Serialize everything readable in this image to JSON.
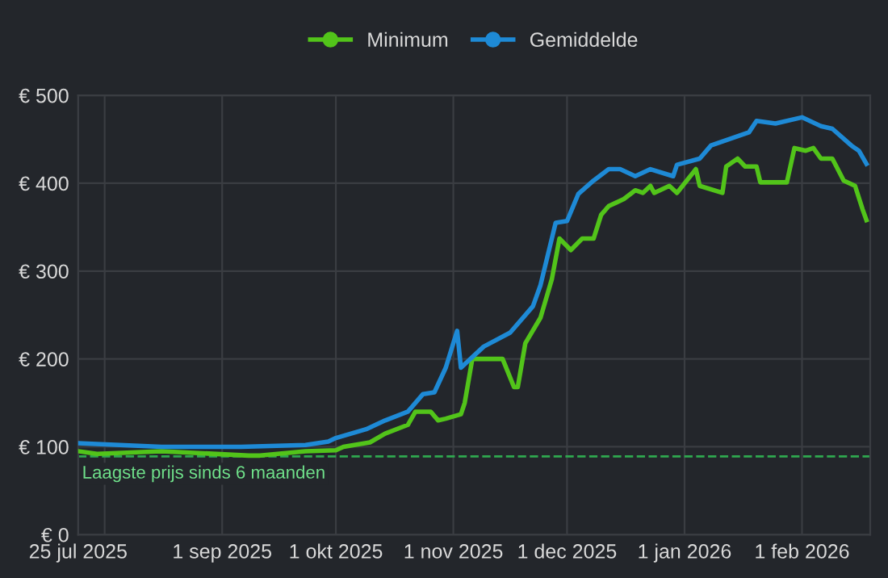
{
  "chart_data": {
    "type": "line",
    "xlim": [
      "2025-07-25",
      "2026-02-19"
    ],
    "xticks": [
      {
        "value": "2025-07-25",
        "label": "25 jul 2025"
      },
      {
        "value": "2025-08-01",
        "label": null
      },
      {
        "value": "2025-09-01",
        "label": "1 sep 2025"
      },
      {
        "value": "2025-10-01",
        "label": "1 okt 2025"
      },
      {
        "value": "2025-11-01",
        "label": "1 nov 2025"
      },
      {
        "value": "2025-12-01",
        "label": "1 dec 2025"
      },
      {
        "value": "2026-01-01",
        "label": "1 jan 2026"
      },
      {
        "value": "2026-02-01",
        "label": "1 feb 2026"
      }
    ],
    "ylim": [
      0,
      500
    ],
    "yticks": [
      {
        "value": 0,
        "label": "€ 0"
      },
      {
        "value": 100,
        "label": "€ 100"
      },
      {
        "value": 200,
        "label": "€ 200"
      },
      {
        "value": 300,
        "label": "€ 300"
      },
      {
        "value": 400,
        "label": "€ 400"
      },
      {
        "value": 500,
        "label": "€ 500"
      }
    ],
    "grid": true,
    "legend": "top",
    "marker": "none",
    "line_style": "solid",
    "ref_lines": [
      {
        "axis": "y",
        "value": 89,
        "label": "Laagste prijs sinds 6 maanden",
        "color": "#2fa84f",
        "line_style": "dashed"
      }
    ],
    "series": [
      {
        "name": "Minimum",
        "color": "#52c41a",
        "x": [
          "2025-07-25",
          "2025-07-30",
          "2025-08-16",
          "2025-09-08",
          "2025-09-11",
          "2025-09-23",
          "2025-10-01",
          "2025-10-03",
          "2025-10-10",
          "2025-10-14",
          "2025-10-20",
          "2025-10-22",
          "2025-10-26",
          "2025-10-28",
          "2025-10-30",
          "2025-11-03",
          "2025-11-04",
          "2025-11-06",
          "2025-11-14",
          "2025-11-17",
          "2025-11-18",
          "2025-11-20",
          "2025-11-24",
          "2025-11-27",
          "2025-11-29",
          "2025-12-02",
          "2025-12-05",
          "2025-12-08",
          "2025-12-10",
          "2025-12-12",
          "2025-12-16",
          "2025-12-19",
          "2025-12-21",
          "2025-12-23",
          "2025-12-24",
          "2025-12-28",
          "2025-12-30",
          "2026-01-04",
          "2026-01-05",
          "2026-01-11",
          "2026-01-12",
          "2026-01-15",
          "2026-01-17",
          "2026-01-20",
          "2026-01-21",
          "2026-01-28",
          "2026-01-30",
          "2026-02-02",
          "2026-02-04",
          "2026-02-06",
          "2026-02-09",
          "2026-02-12",
          "2026-02-15",
          "2026-02-17",
          "2026-02-18"
        ],
        "values": [
          95,
          92,
          95,
          90,
          90,
          95,
          96,
          100,
          105,
          115,
          125,
          140,
          140,
          130,
          132,
          137,
          150,
          200,
          200,
          168,
          168,
          218,
          247,
          291,
          337,
          324,
          337,
          337,
          364,
          374,
          382,
          392,
          389,
          397,
          389,
          397,
          389,
          416,
          397,
          389,
          419,
          428,
          419,
          419,
          401,
          401,
          440,
          437,
          440,
          428,
          428,
          403,
          397,
          370,
          358
        ]
      },
      {
        "name": "Gemiddelde",
        "color": "#1e8ad6",
        "x": [
          "2025-07-25",
          "2025-08-16",
          "2025-09-06",
          "2025-09-23",
          "2025-09-29",
          "2025-10-01",
          "2025-10-09",
          "2025-10-14",
          "2025-10-20",
          "2025-10-24",
          "2025-10-27",
          "2025-10-30",
          "2025-11-02",
          "2025-11-03",
          "2025-11-09",
          "2025-11-16",
          "2025-11-22",
          "2025-11-24",
          "2025-11-28",
          "2025-12-01",
          "2025-12-04",
          "2025-12-08",
          "2025-12-12",
          "2025-12-15",
          "2025-12-19",
          "2025-12-23",
          "2025-12-29",
          "2025-12-30",
          "2026-01-05",
          "2026-01-08",
          "2026-01-14",
          "2026-01-18",
          "2026-01-20",
          "2026-01-25",
          "2026-02-01",
          "2026-02-06",
          "2026-02-09",
          "2026-02-14",
          "2026-02-16",
          "2026-02-18"
        ],
        "values": [
          104,
          100,
          100,
          102,
          106,
          110,
          120,
          130,
          140,
          160,
          162,
          190,
          232,
          190,
          214,
          230,
          260,
          284,
          355,
          357,
          388,
          403,
          416,
          416,
          408,
          416,
          408,
          421,
          428,
          443,
          452,
          458,
          471,
          468,
          475,
          465,
          462,
          443,
          437,
          422
        ]
      }
    ]
  }
}
